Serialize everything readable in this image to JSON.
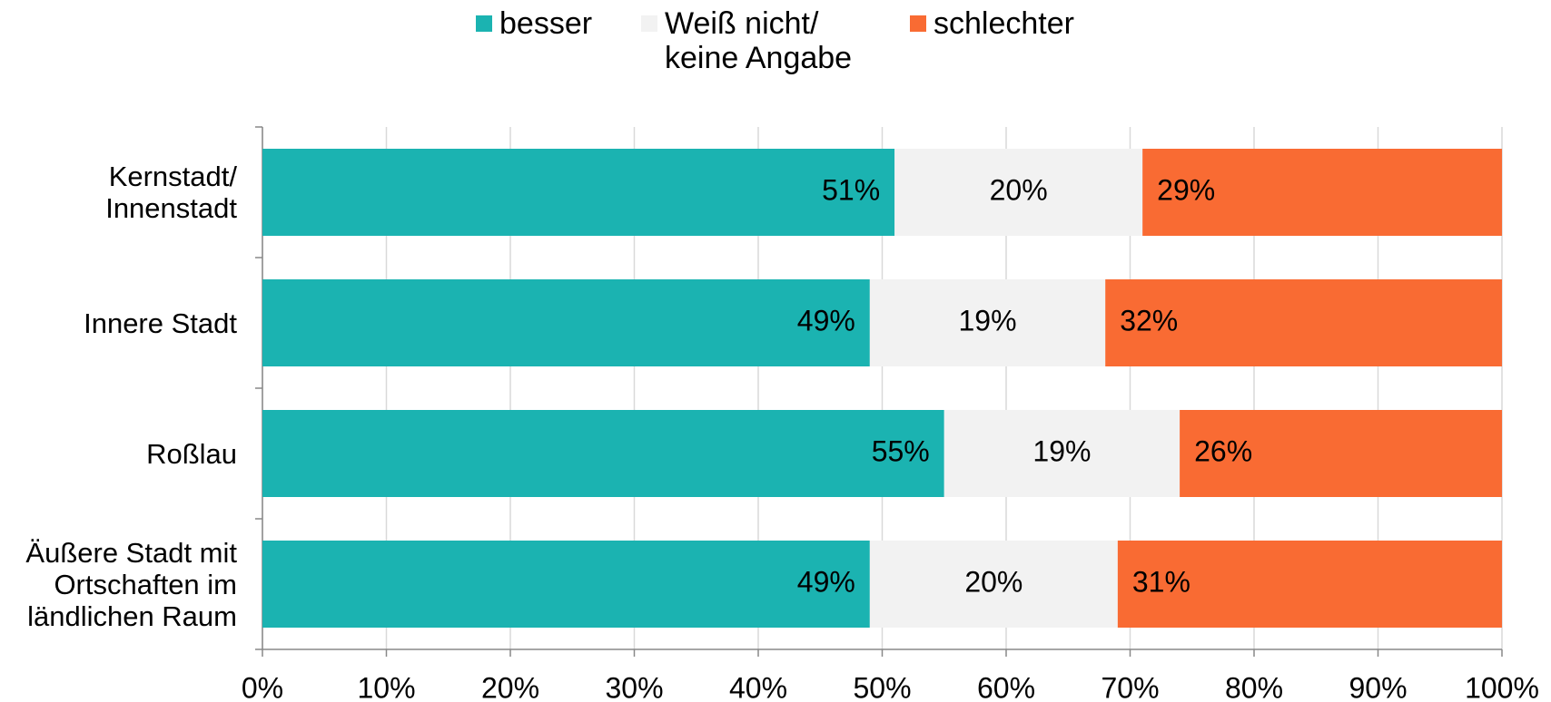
{
  "chart_data": {
    "type": "stacked_barh",
    "categories": [
      "Kernstadt/\nInnenstadt",
      "Innere Stadt",
      "Roßlau",
      "Äußere Stadt mit\nOrtschaften im\nländlichen Raum"
    ],
    "series": [
      {
        "name": "besser",
        "color": "#1bb3b1",
        "values": [
          51,
          49,
          55,
          49
        ],
        "value_labels": [
          "51%",
          "49%",
          "55%",
          "49%"
        ]
      },
      {
        "name": "Weiß nicht/\nkeine Angabe",
        "color": "#f2f2f2",
        "values": [
          20,
          19,
          19,
          20
        ],
        "value_labels": [
          "20%",
          "19%",
          "19%",
          "20%"
        ]
      },
      {
        "name": "schlechter",
        "color": "#f96b33",
        "values": [
          29,
          32,
          26,
          31
        ],
        "value_labels": [
          "29%",
          "32%",
          "26%",
          "31%"
        ]
      }
    ],
    "xlim": [
      0,
      100
    ],
    "xticks": [
      {
        "value": 0,
        "label": "0%"
      },
      {
        "value": 10,
        "label": "10%"
      },
      {
        "value": 20,
        "label": "20%"
      },
      {
        "value": 30,
        "label": "30%"
      },
      {
        "value": 40,
        "label": "40%"
      },
      {
        "value": 50,
        "label": "50%"
      },
      {
        "value": 60,
        "label": "60%"
      },
      {
        "value": 70,
        "label": "70%"
      },
      {
        "value": 80,
        "label": "80%"
      },
      {
        "value": 90,
        "label": "90%"
      },
      {
        "value": 100,
        "label": "100%"
      }
    ],
    "grid": true,
    "legend": "top"
  }
}
